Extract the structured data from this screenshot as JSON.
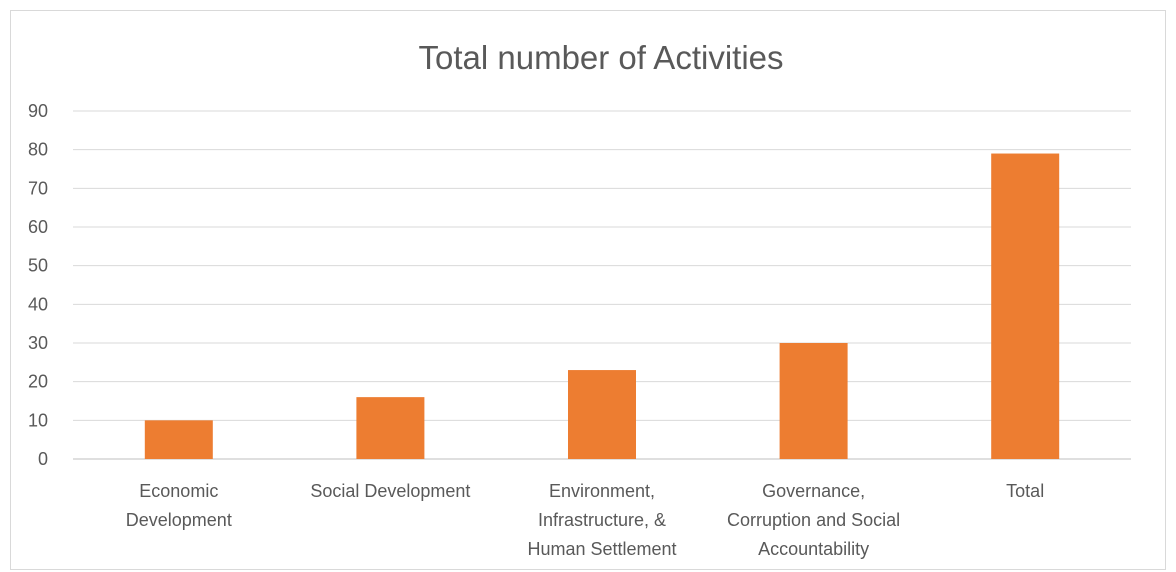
{
  "chart_data": {
    "type": "bar",
    "title": "Total number of Activities",
    "xlabel": "",
    "ylabel": "",
    "categories": [
      [
        "Economic",
        "Development"
      ],
      [
        "Social Development"
      ],
      [
        "Environment,",
        "Infrastructure, &",
        "Human Settlement"
      ],
      [
        "Governance,",
        "Corruption and Social",
        "Accountability"
      ],
      [
        "Total"
      ]
    ],
    "values": [
      10,
      16,
      23,
      30,
      79
    ],
    "ylim": [
      0,
      90
    ],
    "yticks": [
      0,
      10,
      20,
      30,
      40,
      50,
      60,
      70,
      80,
      90
    ],
    "grid": true,
    "legend": "none",
    "bar_color": "#ED7D31"
  }
}
